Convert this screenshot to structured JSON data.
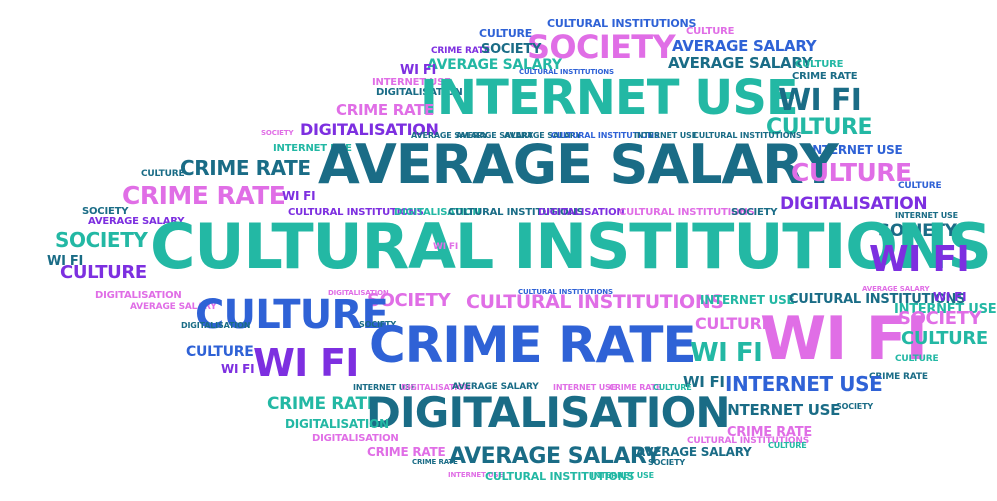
{
  "words": {
    "cultural_institutions": "CULTURAL INSTITUTIONS",
    "average_salary": "AVERAGE SALARY",
    "internet_use": "INTERNET USE",
    "crime_rate": "CRIME RATE",
    "digitalisation": "DIGITALISATION",
    "wi_fi": "WI FI",
    "culture": "CULTURE",
    "society": "SOCIETY"
  },
  "colors": {
    "pink": "#e06ee6",
    "teal": "#23b8a4",
    "blue": "#2f62d6",
    "purple": "#7d2fe0",
    "navy": "#1a6c86",
    "cyan": "#3ec8c0"
  }
}
